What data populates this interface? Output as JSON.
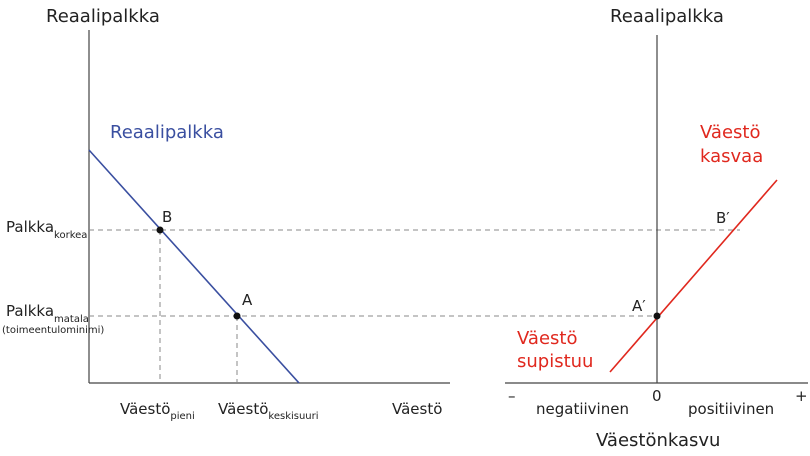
{
  "left_panel": {
    "axis_title": "Reaalipalkka",
    "curve_label": "Reaalipalkka",
    "wage_high": {
      "main": "Palkka",
      "sub": "korkea"
    },
    "wage_low": {
      "main": "Palkka",
      "sub": "matala",
      "note": "(toimeentulominimi)"
    },
    "points": [
      "B",
      "A"
    ],
    "x_labels": [
      {
        "main": "Väestö",
        "sub": "pieni"
      },
      {
        "main": "Väestö",
        "sub": "keskisuuri"
      }
    ],
    "x_axis_title": "Väestö"
  },
  "right_panel": {
    "axis_title": "Reaalipalkka",
    "growing_label": [
      "Väestö",
      "kasvaa"
    ],
    "shrinking_label": [
      "Väestö",
      "supistuu"
    ],
    "points": [
      "B′",
      "A′"
    ],
    "x_marks": [
      "–",
      "0",
      "+"
    ],
    "x_sides": [
      "negatiivinen",
      "positiivinen"
    ],
    "x_axis_title": "Väestönkasvu"
  }
}
